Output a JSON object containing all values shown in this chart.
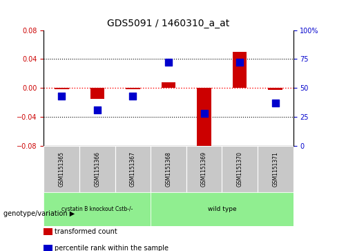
{
  "title": "GDS5091 / 1460310_a_at",
  "samples": [
    "GSM1151365",
    "GSM1151366",
    "GSM1151367",
    "GSM1151368",
    "GSM1151369",
    "GSM1151370",
    "GSM1151371"
  ],
  "transformed_count": [
    -0.002,
    -0.015,
    -0.002,
    0.008,
    -0.085,
    0.05,
    -0.003
  ],
  "percentile_rank": [
    43,
    31,
    43,
    72,
    28,
    72,
    37
  ],
  "ylim_left": [
    -0.08,
    0.08
  ],
  "ylim_right": [
    0,
    100
  ],
  "yticks_left": [
    -0.08,
    -0.04,
    0,
    0.04,
    0.08
  ],
  "yticks_right": [
    0,
    25,
    50,
    75,
    100
  ],
  "bar_color": "#cc0000",
  "dot_color": "#0000cc",
  "bar_width": 0.4,
  "dot_size": 55,
  "group1_label": "cystatin B knockout Cstb-/-",
  "group1_count": 3,
  "group2_label": "wild type",
  "group2_count": 4,
  "group_color": "#90ee90",
  "sample_box_color": "#c8c8c8",
  "group_label_prefix": "genotype/variation",
  "legend_items": [
    {
      "color": "#cc0000",
      "label": "transformed count"
    },
    {
      "color": "#0000cc",
      "label": "percentile rank within the sample"
    }
  ],
  "zero_line_color": "#ff0000",
  "bg_color": "#ffffff",
  "left_tick_color": "#cc0000",
  "right_tick_color": "#0000cc",
  "title_fontsize": 10
}
